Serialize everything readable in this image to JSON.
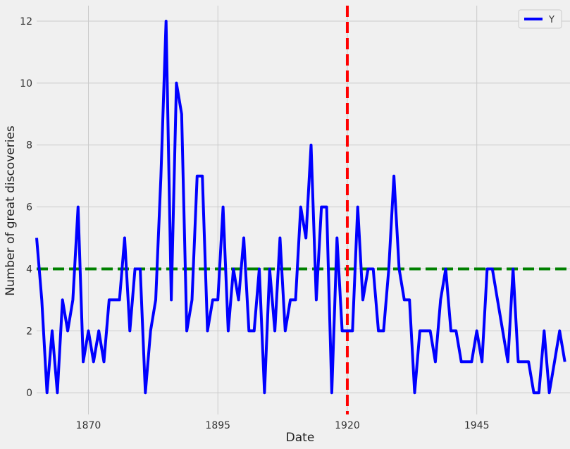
{
  "chart_data": {
    "type": "line",
    "title": "",
    "xlabel": "Date",
    "ylabel": "Number of great discoveries",
    "xlim": [
      1860,
      1963
    ],
    "ylim": [
      -0.7,
      12.5
    ],
    "xticks": [
      1870,
      1895,
      1920,
      1945
    ],
    "yticks": [
      0,
      2,
      4,
      6,
      8,
      10,
      12
    ],
    "grid": true,
    "legend": {
      "position": "top-right",
      "entries": [
        "Y"
      ]
    },
    "series": [
      {
        "name": "Y",
        "color": "#0000ff",
        "x": [
          1860,
          1861,
          1862,
          1863,
          1864,
          1865,
          1866,
          1867,
          1868,
          1869,
          1870,
          1871,
          1872,
          1873,
          1874,
          1875,
          1876,
          1877,
          1878,
          1879,
          1880,
          1881,
          1882,
          1883,
          1884,
          1885,
          1886,
          1887,
          1888,
          1889,
          1890,
          1891,
          1892,
          1893,
          1894,
          1895,
          1896,
          1897,
          1898,
          1899,
          1900,
          1901,
          1902,
          1903,
          1904,
          1905,
          1906,
          1907,
          1908,
          1909,
          1910,
          1911,
          1912,
          1913,
          1914,
          1915,
          1916,
          1917,
          1918,
          1919,
          1920,
          1921,
          1922,
          1923,
          1924,
          1925,
          1926,
          1927,
          1928,
          1929,
          1930,
          1931,
          1932,
          1933,
          1934,
          1935,
          1936,
          1937,
          1938,
          1939,
          1940,
          1941,
          1942,
          1943,
          1944,
          1945,
          1946,
          1947,
          1948,
          1949,
          1950,
          1951,
          1952,
          1953,
          1954,
          1955,
          1956,
          1957,
          1958,
          1959,
          1960,
          1961,
          1962
        ],
        "y": [
          5,
          3,
          0,
          2,
          0,
          3,
          2,
          3,
          6,
          1,
          2,
          1,
          2,
          1,
          3,
          3,
          3,
          5,
          2,
          4,
          4,
          0,
          2,
          3,
          7,
          12,
          3,
          10,
          9,
          2,
          3,
          7,
          7,
          2,
          3,
          3,
          6,
          2,
          4,
          3,
          5,
          2,
          2,
          4,
          0,
          4,
          2,
          5,
          2,
          3,
          3,
          6,
          5,
          8,
          3,
          6,
          6,
          0,
          5,
          2,
          2,
          2,
          6,
          3,
          4,
          4,
          2,
          2,
          4,
          7,
          4,
          3,
          3,
          0,
          2,
          2,
          2,
          1,
          3,
          4,
          2,
          2,
          1,
          1,
          1,
          2,
          1,
          4,
          4,
          3,
          2,
          1,
          4,
          1,
          1,
          1,
          0,
          0,
          2,
          0,
          1,
          2,
          1
        ]
      }
    ],
    "reference_lines": [
      {
        "orientation": "horizontal",
        "value": 4,
        "color": "#008000",
        "style": "dashed"
      },
      {
        "orientation": "vertical",
        "value": 1920,
        "color": "#ff0000",
        "style": "dashed"
      }
    ]
  }
}
